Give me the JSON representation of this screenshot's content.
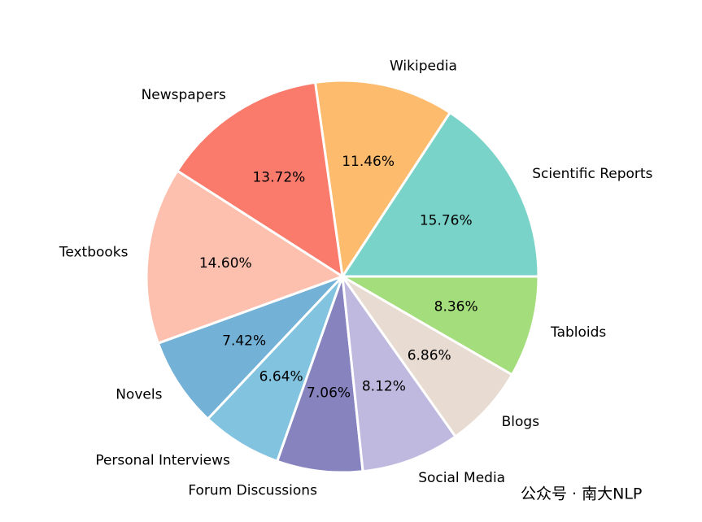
{
  "chart_data": {
    "type": "pie",
    "categories": [
      "Scientific Reports",
      "Wikipedia",
      "Newspapers",
      "Textbooks",
      "Novels",
      "Personal Interviews",
      "Forum Discussions",
      "Social Media",
      "Blogs",
      "Tabloids"
    ],
    "values": [
      15.76,
      11.46,
      13.72,
      14.6,
      7.42,
      6.64,
      7.06,
      8.12,
      6.86,
      8.36
    ],
    "value_labels": [
      "15.76%",
      "11.46%",
      "13.72%",
      "14.60%",
      "7.42%",
      "6.64%",
      "7.06%",
      "8.12%",
      "6.86%",
      "8.36%"
    ],
    "colors": [
      "#7ad3c8",
      "#fdbb6d",
      "#fa7b6b",
      "#fdc0ae",
      "#73b1d6",
      "#82c3df",
      "#8683bf",
      "#c0b9df",
      "#e8dbd2",
      "#a4dd7b"
    ],
    "start_angle": 0
  },
  "watermark": "公众号 · 南大NLP"
}
